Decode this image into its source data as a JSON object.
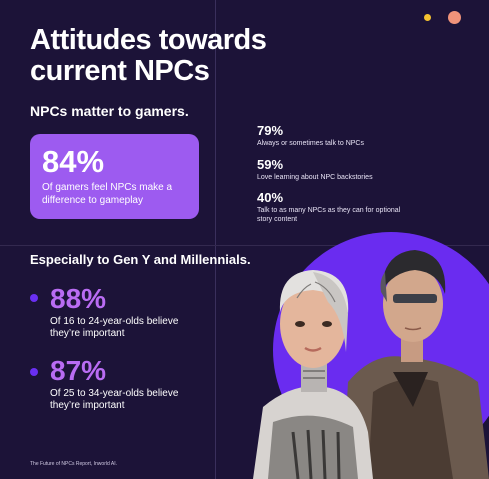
{
  "header": {
    "title": "Attitudes towards current NPCs",
    "subtitle": "NPCs matter to gamers."
  },
  "highlight": {
    "percent": "84%",
    "text": "Of gamers feel NPCs make a difference to gameplay"
  },
  "stats": [
    {
      "percent": "79%",
      "text": "Always or sometimes talk to NPCs"
    },
    {
      "percent": "59%",
      "text": "Love learning about NPC backstories"
    },
    {
      "percent": "40%",
      "text": "Talk to as many NPCs as they can for optional story content"
    }
  ],
  "generation": {
    "title": "Especially to Gen Y and Millennials.",
    "items": [
      {
        "percent": "88%",
        "text": "Of 16 to 24-year-olds believe they’re important"
      },
      {
        "percent": "87%",
        "text": "Of 25 to 34-year-olds believe they’re important"
      }
    ]
  },
  "footer": {
    "source": "The Future of NPCs Report, Inworld AI."
  },
  "colors": {
    "background": "#1c1338",
    "card": "#9d5bf0",
    "accent_pct": "#b96cf3",
    "bullet": "#6a2ff2",
    "circle": "#6a2cf0",
    "dot_yellow": "#f5c230",
    "dot_peach": "#f0937a"
  },
  "illustration": {
    "icon": "npc-characters-illustration"
  }
}
